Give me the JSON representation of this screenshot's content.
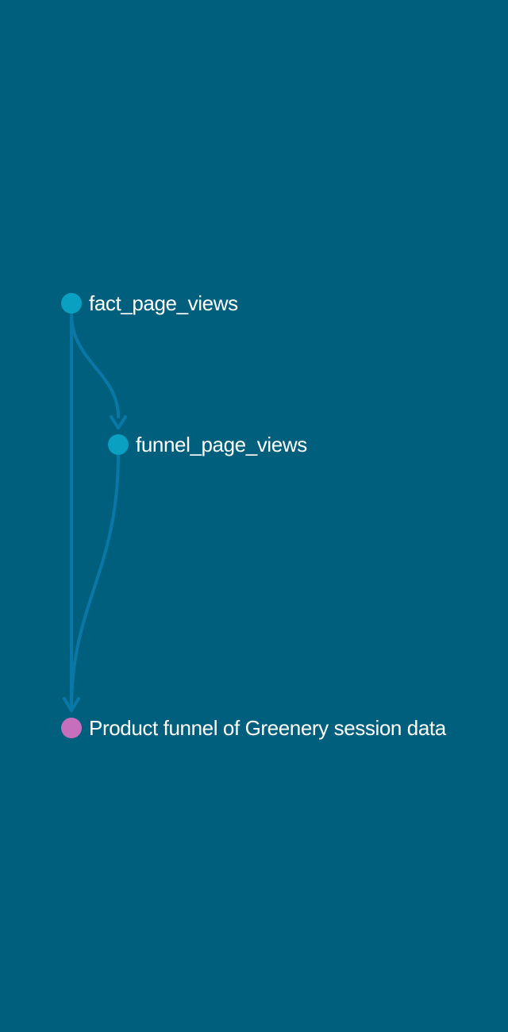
{
  "colors": {
    "background": "#005f7d",
    "edge": "#0a78a6",
    "model_node": "#0aa0c2",
    "exposure_node": "#c56fbd",
    "label": "#ffffff"
  },
  "nodes": [
    {
      "id": "fact_page_views",
      "label": "fact_page_views",
      "kind": "model"
    },
    {
      "id": "funnel_page_views",
      "label": "funnel_page_views",
      "kind": "model"
    },
    {
      "id": "product_funnel",
      "label": "Product funnel of Greenery session data",
      "kind": "exposure"
    }
  ],
  "edges": [
    {
      "from": "fact_page_views",
      "to": "funnel_page_views"
    },
    {
      "from": "fact_page_views",
      "to": "product_funnel"
    },
    {
      "from": "funnel_page_views",
      "to": "product_funnel"
    }
  ]
}
